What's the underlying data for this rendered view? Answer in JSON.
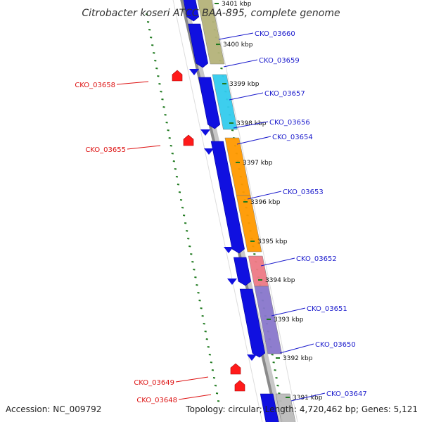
{
  "header": {
    "title": "Citrobacter koseri ATCC BAA-895, complete genome"
  },
  "footer": {
    "accession": "Accession: NC_009792",
    "summary": "Topology: circular; Length: 4,720,462 bp; Genes: 5,121"
  },
  "colors": {
    "forward_label": "#1a1acc",
    "reverse_label": "#dd1111",
    "backbone": "#8a8a8a",
    "ticks": "#1f7a1f",
    "cds_blue": "#1010e0",
    "reverse_gene": "#ff1a1a"
  },
  "scale_ticks": [
    {
      "label": "3401 kbp"
    },
    {
      "label": "3400 kbp"
    },
    {
      "label": "3399 kbp"
    },
    {
      "label": "3398 kbp"
    },
    {
      "label": "3397 kbp"
    },
    {
      "label": "3396 kbp"
    },
    {
      "label": "3395 kbp"
    },
    {
      "label": "3394 kbp"
    },
    {
      "label": "3393 kbp"
    },
    {
      "label": "3392 kbp"
    },
    {
      "label": "3391 kbp"
    }
  ],
  "forward_genes": [
    {
      "name": "CKO_03660",
      "color": "#b5b37a"
    },
    {
      "name": "CKO_03659",
      "color": "#1010e0"
    },
    {
      "name": "CKO_03657",
      "color": "#33ccee"
    },
    {
      "name": "CKO_03656",
      "color": "#1010e0"
    },
    {
      "name": "CKO_03654",
      "color": "#ff9900"
    },
    {
      "name": "CKO_03653",
      "color": "#ff9900"
    },
    {
      "name": "CKO_03652",
      "color": "#ee7a85"
    },
    {
      "name": "CKO_03651",
      "color": "#8877cc"
    },
    {
      "name": "CKO_03650",
      "color": "#1010e0"
    },
    {
      "name": "CKO_03647",
      "color": "#bbbbbb"
    }
  ],
  "reverse_genes": [
    {
      "name": "CKO_03658"
    },
    {
      "name": "CKO_03655"
    },
    {
      "name": "CKO_03649"
    },
    {
      "name": "CKO_03648"
    }
  ]
}
